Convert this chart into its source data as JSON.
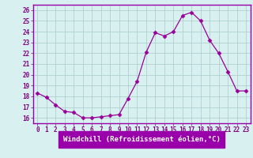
{
  "x": [
    0,
    1,
    2,
    3,
    4,
    5,
    6,
    7,
    8,
    9,
    10,
    11,
    12,
    13,
    14,
    15,
    16,
    17,
    18,
    19,
    20,
    21,
    22,
    23
  ],
  "y": [
    18.3,
    17.9,
    17.2,
    16.6,
    16.5,
    16.0,
    16.0,
    16.1,
    16.2,
    16.3,
    17.8,
    19.4,
    22.1,
    23.9,
    23.6,
    24.0,
    25.5,
    25.8,
    25.0,
    23.2,
    22.0,
    20.3,
    18.5,
    18.5
  ],
  "line_color": "#990099",
  "marker": "D",
  "marker_size": 2.5,
  "bg_color": "#d9f0f0",
  "grid_color": "#b0d0d0",
  "ylim": [
    15.5,
    26.5
  ],
  "xlim": [
    -0.5,
    23.5
  ],
  "yticks": [
    16,
    17,
    18,
    19,
    20,
    21,
    22,
    23,
    24,
    25,
    26
  ],
  "xticks": [
    0,
    1,
    2,
    3,
    4,
    5,
    6,
    7,
    8,
    9,
    10,
    11,
    12,
    13,
    14,
    15,
    16,
    17,
    18,
    19,
    20,
    21,
    22,
    23
  ],
  "xlabel": "Windchill (Refroidissement éolien,°C)",
  "xlabel_bg": "#9900aa",
  "tick_fontsize": 5.5,
  "xlabel_fontsize": 6.5,
  "purple": "#800080",
  "spine_color": "#9900aa"
}
